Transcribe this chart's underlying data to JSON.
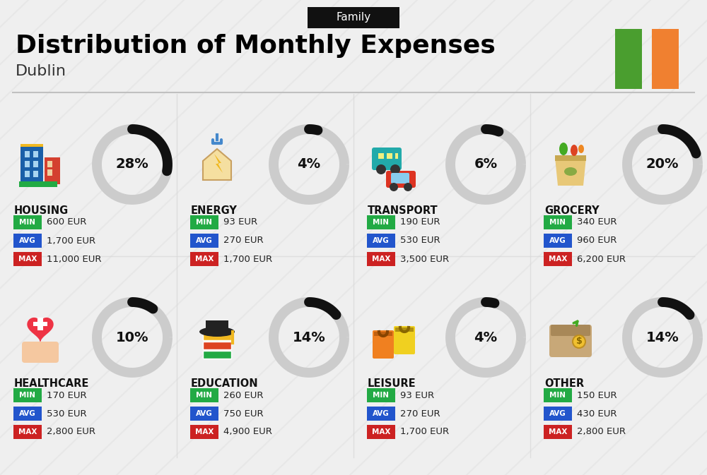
{
  "title": "Distribution of Monthly Expenses",
  "subtitle": "Dublin",
  "tag": "Family",
  "bg_color": "#efefef",
  "ireland_green": "#4a9e2f",
  "ireland_orange": "#f08030",
  "categories": [
    {
      "name": "HOUSING",
      "pct": 28,
      "min_val": "600 EUR",
      "avg_val": "1,700 EUR",
      "max_val": "11,000 EUR",
      "col": 0,
      "row": 0
    },
    {
      "name": "ENERGY",
      "pct": 4,
      "min_val": "93 EUR",
      "avg_val": "270 EUR",
      "max_val": "1,700 EUR",
      "col": 1,
      "row": 0
    },
    {
      "name": "TRANSPORT",
      "pct": 6,
      "min_val": "190 EUR",
      "avg_val": "530 EUR",
      "max_val": "3,500 EUR",
      "col": 2,
      "row": 0
    },
    {
      "name": "GROCERY",
      "pct": 20,
      "min_val": "340 EUR",
      "avg_val": "960 EUR",
      "max_val": "6,200 EUR",
      "col": 3,
      "row": 0
    },
    {
      "name": "HEALTHCARE",
      "pct": 10,
      "min_val": "170 EUR",
      "avg_val": "530 EUR",
      "max_val": "2,800 EUR",
      "col": 0,
      "row": 1
    },
    {
      "name": "EDUCATION",
      "pct": 14,
      "min_val": "260 EUR",
      "avg_val": "750 EUR",
      "max_val": "4,900 EUR",
      "col": 1,
      "row": 1
    },
    {
      "name": "LEISURE",
      "pct": 4,
      "min_val": "93 EUR",
      "avg_val": "270 EUR",
      "max_val": "1,700 EUR",
      "col": 2,
      "row": 1
    },
    {
      "name": "OTHER",
      "pct": 14,
      "min_val": "150 EUR",
      "avg_val": "430 EUR",
      "max_val": "2,800 EUR",
      "col": 3,
      "row": 1
    }
  ],
  "min_color": "#22aa44",
  "avg_color": "#2255cc",
  "max_color": "#cc2222",
  "label_color": "#ffffff",
  "cat_label_color": "#111111",
  "value_color": "#222222",
  "donut_bg": "#cccccc",
  "donut_fg": "#111111",
  "stripe_color": "#e0e0e0"
}
